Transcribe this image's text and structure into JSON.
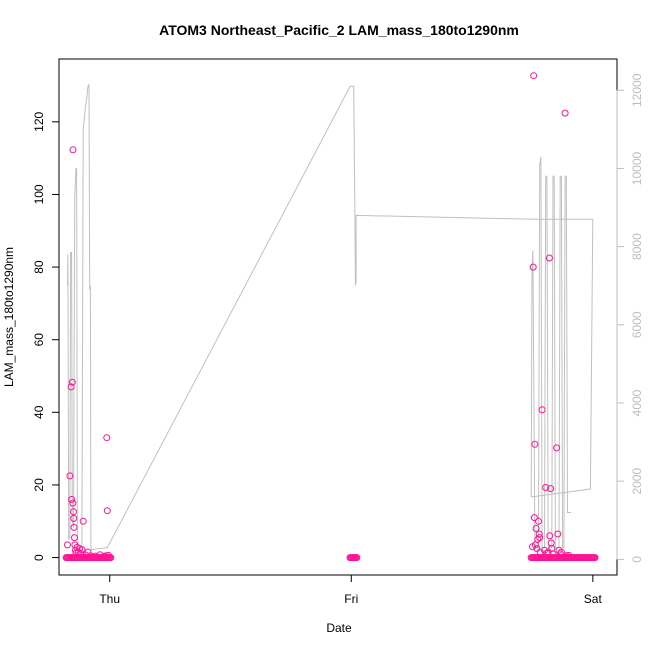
{
  "chart_data": {
    "type": "scatter",
    "title": "ATOM3 Northeast_Pacific_2 LAM_mass_180to1290nm",
    "xlabel": "Date",
    "ylabel": "LAM_mass_180to1290nm",
    "x_ticks": [
      "Thu",
      "Fri",
      "Sat"
    ],
    "x_tick_day_offsets": [
      0,
      1,
      2
    ],
    "xlim_days": [
      -0.21,
      2.1
    ],
    "y_left": {
      "ticks": [
        0,
        20,
        40,
        60,
        80,
        100,
        120
      ],
      "lim": [
        -4.8,
        137.3
      ]
    },
    "y_right": {
      "ticks": [
        0,
        2000,
        4000,
        6000,
        8000,
        10000,
        12000
      ],
      "lim": [
        -400,
        12800
      ],
      "label": ""
    },
    "grid": false,
    "legend": "none",
    "colors": {
      "points": "#ff1493",
      "right_series": "#c0c0c0",
      "axis": "#000000",
      "right_axis": "#bdbdbd"
    },
    "series": [
      {
        "axis": "left",
        "kind": "points",
        "points": [
          [
            -0.175,
            3.5
          ],
          [
            -0.165,
            22.5
          ],
          [
            -0.16,
            47
          ],
          [
            -0.158,
            16
          ],
          [
            -0.155,
            48.3
          ],
          [
            -0.153,
            15
          ],
          [
            -0.152,
            112.3
          ],
          [
            -0.15,
            12.6
          ],
          [
            -0.149,
            10.8
          ],
          [
            -0.148,
            8.3
          ],
          [
            -0.146,
            5.5
          ],
          [
            -0.144,
            3.5
          ],
          [
            -0.142,
            2
          ],
          [
            -0.14,
            1.2
          ],
          [
            -0.135,
            2.8
          ],
          [
            -0.13,
            1.5
          ],
          [
            -0.125,
            2.5
          ],
          [
            -0.12,
            1.2
          ],
          [
            -0.115,
            2.2
          ],
          [
            -0.11,
            10
          ],
          [
            -0.1,
            0.7
          ],
          [
            -0.09,
            1.5
          ],
          [
            -0.08,
            0.5
          ],
          [
            -0.06,
            0.4
          ],
          [
            -0.04,
            0.8
          ],
          [
            -0.025,
            0.3
          ],
          [
            -0.015,
            0.5
          ],
          [
            -0.012,
            33
          ],
          [
            -0.01,
            12.9
          ],
          [
            -0.005,
            0.6
          ],
          [
            1.75,
            3
          ],
          [
            1.753,
            80
          ],
          [
            1.755,
            132.7
          ],
          [
            1.758,
            11
          ],
          [
            1.76,
            31.2
          ],
          [
            1.762,
            3.5
          ],
          [
            1.765,
            8
          ],
          [
            1.768,
            2.5
          ],
          [
            1.772,
            5
          ],
          [
            1.775,
            10
          ],
          [
            1.778,
            6.5
          ],
          [
            1.78,
            5.5
          ],
          [
            1.782,
            1.5
          ],
          [
            1.79,
            40.7
          ],
          [
            1.8,
            2
          ],
          [
            1.805,
            19.3
          ],
          [
            1.81,
            1.2
          ],
          [
            1.815,
            1.5
          ],
          [
            1.82,
            82.5
          ],
          [
            1.822,
            6
          ],
          [
            1.825,
            19
          ],
          [
            1.828,
            4
          ],
          [
            1.83,
            2.5
          ],
          [
            1.835,
            1
          ],
          [
            1.85,
            30.2
          ],
          [
            1.855,
            6.5
          ],
          [
            1.86,
            2
          ],
          [
            1.865,
            1
          ],
          [
            1.87,
            1.5
          ],
          [
            1.885,
            122.4
          ],
          [
            1.89,
            0.5
          ],
          [
            1.9,
            0.6
          ]
        ],
        "zero_runs": [
          [
            -0.18,
            0.005
          ],
          [
            0.995,
            1.025
          ],
          [
            1.745,
            2.01
          ]
        ]
      },
      {
        "axis": "right",
        "kind": "line",
        "points": [
          [
            -0.175,
            7000
          ],
          [
            -0.173,
            7800
          ],
          [
            -0.17,
            500
          ],
          [
            -0.165,
            600
          ],
          [
            -0.162,
            7850
          ],
          [
            -0.158,
            7850
          ],
          [
            -0.155,
            1000
          ],
          [
            -0.15,
            800
          ],
          [
            -0.145,
            9200
          ],
          [
            -0.14,
            10000
          ],
          [
            -0.137,
            10000
          ],
          [
            -0.134,
            600
          ],
          [
            -0.13,
            300
          ],
          [
            -0.115,
            300
          ],
          [
            -0.11,
            11000
          ],
          [
            -0.1,
            11600
          ],
          [
            -0.095,
            11800
          ],
          [
            -0.092,
            12000
          ],
          [
            -0.09,
            12100
          ],
          [
            -0.086,
            12150
          ],
          [
            -0.083,
            6900
          ],
          [
            -0.08,
            7000
          ],
          [
            -0.078,
            300
          ],
          [
            -0.075,
            250
          ],
          [
            -0.01,
            300
          ],
          [
            0.995,
            12100
          ],
          [
            1.01,
            12100
          ],
          [
            1.015,
            8800
          ],
          [
            1.017,
            7000
          ],
          [
            1.02,
            7100
          ],
          [
            1.02,
            8800
          ],
          [
            1.77,
            8700
          ],
          [
            1.775,
            8700
          ],
          [
            2.0,
            8700
          ],
          [
            1.99,
            1800
          ],
          [
            1.75,
            1600
          ],
          [
            1.745,
            1600
          ],
          [
            1.748,
            7500
          ],
          [
            1.752,
            7900
          ],
          [
            1.76,
            300
          ],
          [
            1.775,
            300
          ],
          [
            1.78,
            10100
          ],
          [
            1.785,
            10300
          ],
          [
            1.79,
            300
          ],
          [
            1.8,
            300
          ],
          [
            1.805,
            9800
          ],
          [
            1.81,
            9800
          ],
          [
            1.815,
            300
          ],
          [
            1.83,
            300
          ],
          [
            1.835,
            9800
          ],
          [
            1.84,
            9800
          ],
          [
            1.845,
            300
          ],
          [
            1.86,
            300
          ],
          [
            1.865,
            9800
          ],
          [
            1.87,
            9800
          ],
          [
            1.875,
            300
          ],
          [
            1.88,
            300
          ],
          [
            1.885,
            9800
          ],
          [
            1.89,
            9800
          ],
          [
            1.895,
            1200
          ],
          [
            1.9,
            1200
          ],
          [
            1.91,
            1200
          ]
        ]
      }
    ]
  }
}
